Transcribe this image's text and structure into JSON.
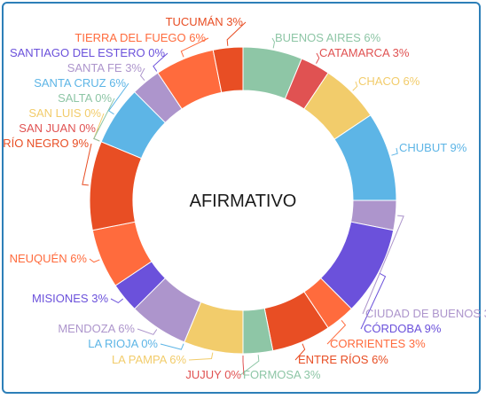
{
  "chart_data": {
    "type": "donut",
    "center_label": "AFIRMATIVO",
    "slices": [
      {
        "label": "BUENOS AIRES",
        "value": 6,
        "color": "#8ec6a6"
      },
      {
        "label": "CATAMARCA",
        "value": 3,
        "color": "#e05252"
      },
      {
        "label": "CHACO",
        "value": 6,
        "color": "#f2cc6b"
      },
      {
        "label": "CHUBUT",
        "value": 9,
        "color": "#5db5e6"
      },
      {
        "label": "CIUDAD DE BUENOS",
        "value": 3,
        "color": "#ad95cc"
      },
      {
        "label": "CÓRDOBA",
        "value": 9,
        "color": "#6b51db"
      },
      {
        "label": "CORRIENTES",
        "value": 3,
        "color": "#ff6b3d"
      },
      {
        "label": "ENTRE RÍOS",
        "value": 6,
        "color": "#e84e24"
      },
      {
        "label": "FORMOSA",
        "value": 3,
        "color": "#8ec6a6"
      },
      {
        "label": "JUJUY",
        "value": 0,
        "color": "#e05252"
      },
      {
        "label": "LA PAMPA",
        "value": 6,
        "color": "#f2cc6b"
      },
      {
        "label": "LA RIOJA",
        "value": 0,
        "color": "#5db5e6"
      },
      {
        "label": "MENDOZA",
        "value": 6,
        "color": "#ad95cc"
      },
      {
        "label": "MISIONES",
        "value": 3,
        "color": "#6b51db"
      },
      {
        "label": "NEUQUÉN",
        "value": 6,
        "color": "#ff6b3d"
      },
      {
        "label": "RÍO NEGRO",
        "value": 9,
        "color": "#e84e24"
      },
      {
        "label": "SAN JUAN",
        "value": 0,
        "color": "#e05252"
      },
      {
        "label": "SAN LUIS",
        "value": 0,
        "color": "#f2cc6b"
      },
      {
        "label": "SALTA",
        "value": 0,
        "color": "#8ec6a6"
      },
      {
        "label": "SANTA CRUZ",
        "value": 6,
        "color": "#5db5e6"
      },
      {
        "label": "SANTA FE",
        "value": 3,
        "color": "#ad95cc"
      },
      {
        "label": "SANTIAGO DEL ESTERO",
        "value": 0,
        "color": "#6b51db"
      },
      {
        "label": "TIERRA DEL FUEGO",
        "value": 6,
        "color": "#ff6b3d"
      },
      {
        "label": "TUCUMÁN",
        "value": 3,
        "color": "#e84e24"
      }
    ]
  }
}
